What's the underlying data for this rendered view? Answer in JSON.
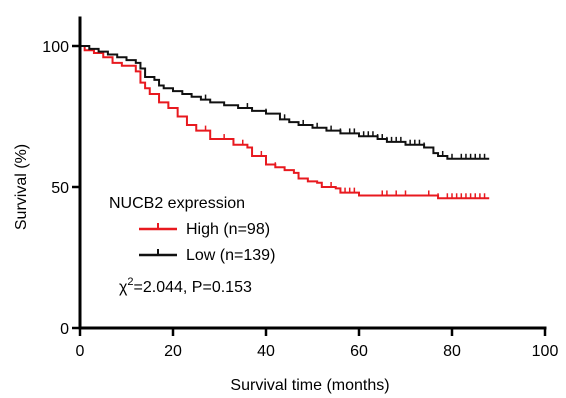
{
  "chart_data": {
    "type": "line",
    "title": "",
    "xlabel": "Survival time (months)",
    "ylabel": "Survival (%)",
    "xlim": [
      0,
      100
    ],
    "ylim": [
      0,
      100
    ],
    "x_ticks": [
      0,
      20,
      40,
      60,
      80,
      100
    ],
    "y_ticks": [
      0,
      50,
      100
    ],
    "grid": false,
    "legend": {
      "title": "NUCB2 expression",
      "placement": "center-left",
      "entries": [
        "High (n=98)",
        "Low (n=139)"
      ]
    },
    "annotation": {
      "chi": "χ",
      "sup": "2",
      "rest": "=2.044, P=0.153"
    },
    "series": [
      {
        "name": "High (n=98)",
        "color": "#e8191f",
        "steps": [
          [
            0,
            100
          ],
          [
            1,
            98.5
          ],
          [
            3,
            97.5
          ],
          [
            5,
            96
          ],
          [
            7,
            94
          ],
          [
            9,
            93
          ],
          [
            12,
            91
          ],
          [
            13,
            87
          ],
          [
            14,
            85
          ],
          [
            15,
            83
          ],
          [
            17,
            80
          ],
          [
            19,
            78
          ],
          [
            21,
            75
          ],
          [
            23,
            72
          ],
          [
            25,
            70
          ],
          [
            28,
            67
          ],
          [
            33,
            65
          ],
          [
            36,
            64
          ],
          [
            37,
            61
          ],
          [
            40,
            58
          ],
          [
            42,
            57
          ],
          [
            44,
            56
          ],
          [
            46,
            55
          ],
          [
            47,
            53
          ],
          [
            49,
            52
          ],
          [
            51,
            51.5
          ],
          [
            52,
            50
          ],
          [
            55,
            49.5
          ],
          [
            56,
            48
          ],
          [
            60,
            47
          ],
          [
            65,
            47
          ],
          [
            77,
            46
          ],
          [
            88,
            46
          ]
        ],
        "censor_x": [
          17,
          19,
          27,
          31,
          35,
          39,
          42,
          54,
          56,
          57,
          58,
          59,
          65,
          66,
          68,
          70,
          75,
          77,
          79,
          80,
          81,
          82,
          83,
          84,
          85,
          86,
          87
        ]
      },
      {
        "name": "Low (n=139)",
        "color": "#111111",
        "steps": [
          [
            0,
            100
          ],
          [
            2,
            99
          ],
          [
            4,
            98
          ],
          [
            6,
            97
          ],
          [
            8,
            96
          ],
          [
            10,
            95
          ],
          [
            12,
            94
          ],
          [
            13,
            92
          ],
          [
            14,
            89
          ],
          [
            16,
            88
          ],
          [
            17,
            86
          ],
          [
            18,
            85
          ],
          [
            20,
            84
          ],
          [
            22,
            83
          ],
          [
            24,
            82
          ],
          [
            26,
            81
          ],
          [
            28,
            80
          ],
          [
            31,
            79
          ],
          [
            34,
            78
          ],
          [
            37,
            77
          ],
          [
            40,
            76
          ],
          [
            43,
            74
          ],
          [
            45,
            73
          ],
          [
            47,
            72
          ],
          [
            50,
            71
          ],
          [
            53,
            70
          ],
          [
            56,
            69
          ],
          [
            60,
            68
          ],
          [
            64,
            67
          ],
          [
            66,
            66
          ],
          [
            70,
            65
          ],
          [
            74,
            64
          ],
          [
            76,
            62
          ],
          [
            77,
            61
          ],
          [
            79,
            60
          ],
          [
            88,
            60
          ]
        ],
        "censor_x": [
          14,
          27,
          36,
          40,
          44,
          48,
          51,
          54,
          56,
          58,
          59,
          61,
          62,
          63,
          64,
          65,
          66,
          67,
          68,
          69,
          71,
          72,
          73,
          74,
          78,
          80,
          82,
          83,
          84,
          85,
          86,
          87
        ]
      }
    ]
  }
}
